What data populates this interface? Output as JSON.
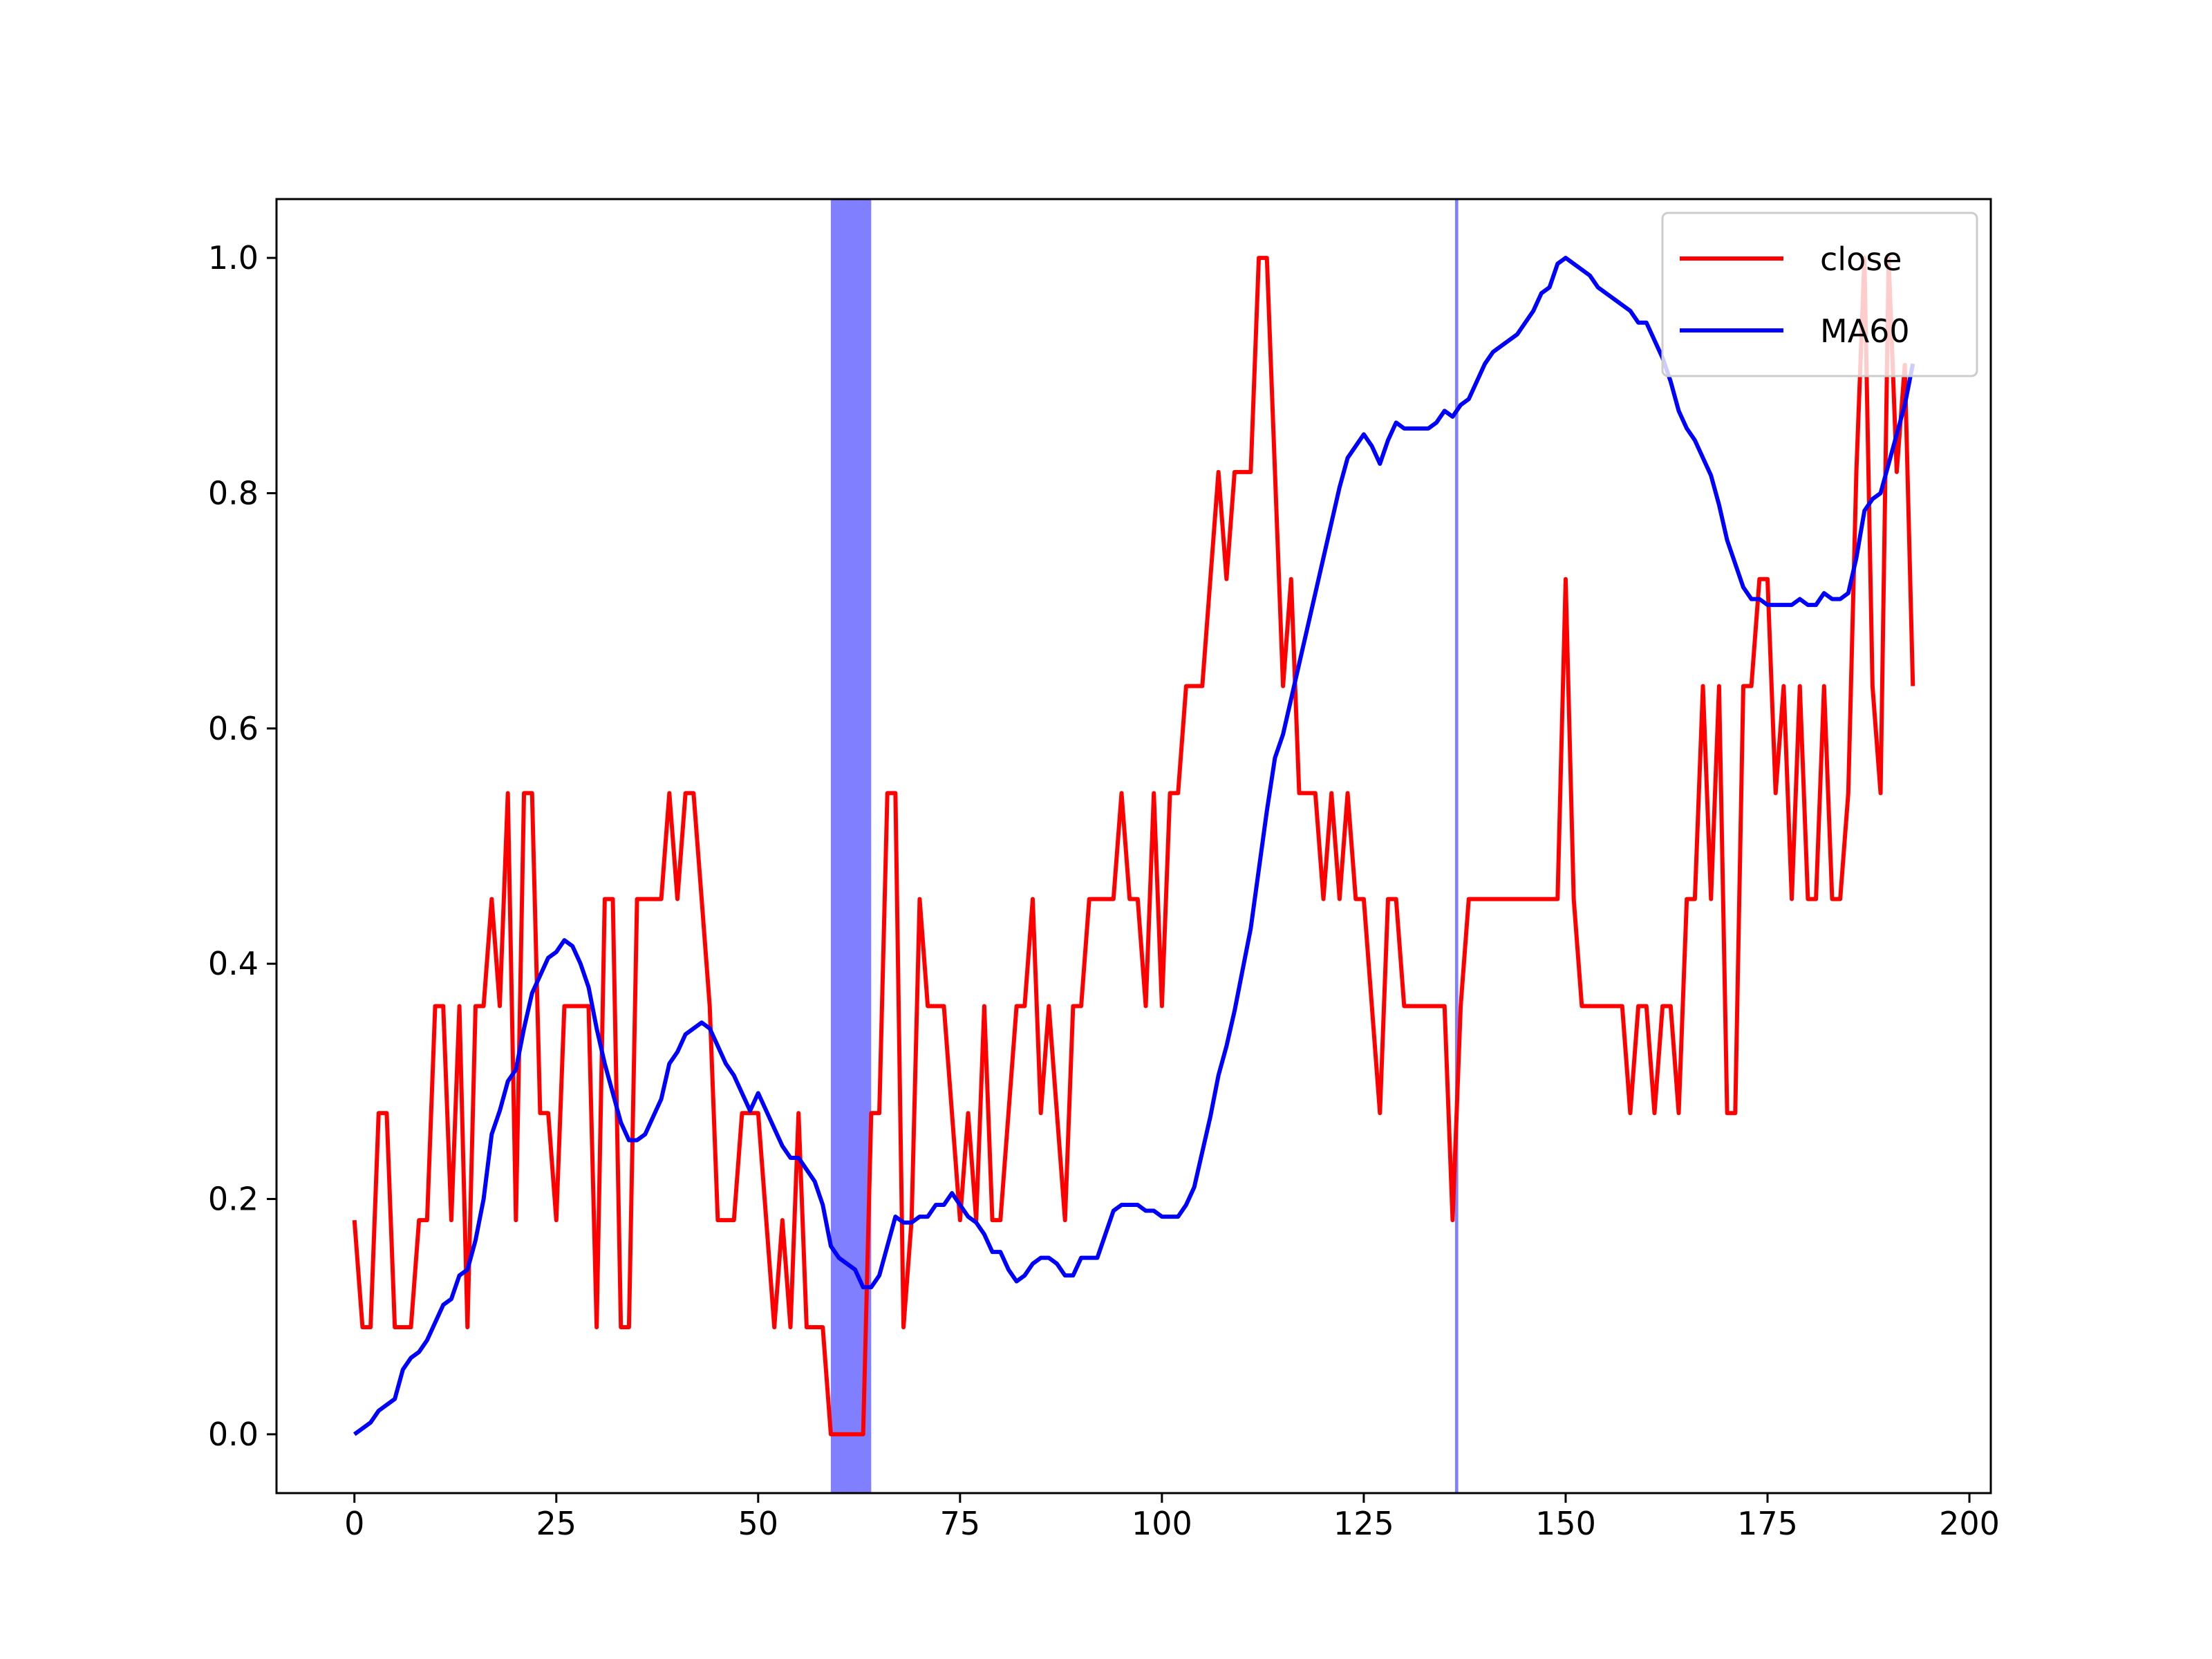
{
  "chart_data": {
    "type": "line",
    "x": [
      0,
      1,
      2,
      3,
      4,
      5,
      6,
      7,
      8,
      9,
      10,
      11,
      12,
      13,
      14,
      15,
      16,
      17,
      18,
      19,
      20,
      21,
      22,
      23,
      24,
      25,
      26,
      27,
      28,
      29,
      30,
      31,
      32,
      33,
      34,
      35,
      36,
      37,
      38,
      39,
      40,
      41,
      42,
      43,
      44,
      45,
      46,
      47,
      48,
      49,
      50,
      51,
      52,
      53,
      54,
      55,
      56,
      57,
      58,
      59,
      60,
      61,
      62,
      63,
      64,
      65,
      66,
      67,
      68,
      69,
      70,
      71,
      72,
      73,
      74,
      75,
      76,
      77,
      78,
      79,
      80,
      81,
      82,
      83,
      84,
      85,
      86,
      87,
      88,
      89,
      90,
      91,
      92,
      93,
      94,
      95,
      96,
      97,
      98,
      99,
      100,
      101,
      102,
      103,
      104,
      105,
      106,
      107,
      108,
      109,
      110,
      111,
      112,
      113,
      114,
      115,
      116,
      117,
      118,
      119,
      120,
      121,
      122,
      123,
      124,
      125,
      126,
      127,
      128,
      129,
      130,
      131,
      132,
      133,
      134,
      135,
      136,
      137,
      138,
      139,
      140,
      141,
      142,
      143,
      144,
      145,
      146,
      147,
      148,
      149,
      150,
      151,
      152,
      153,
      154,
      155,
      156,
      157,
      158,
      159,
      160,
      161,
      162,
      163,
      164,
      165,
      166,
      167,
      168,
      169,
      170,
      171,
      172,
      173,
      174,
      175,
      176,
      177,
      178,
      179,
      180,
      181,
      182,
      183,
      184,
      185,
      186,
      187,
      188,
      189,
      190,
      191,
      192,
      193
    ],
    "series": [
      {
        "name": "close",
        "color": "#ff0000",
        "values": [
          0.182,
          0.091,
          0.091,
          0.273,
          0.273,
          0.091,
          0.091,
          0.091,
          0.182,
          0.182,
          0.364,
          0.364,
          0.182,
          0.364,
          0.091,
          0.364,
          0.364,
          0.455,
          0.364,
          0.545,
          0.182,
          0.545,
          0.545,
          0.273,
          0.273,
          0.182,
          0.364,
          0.364,
          0.364,
          0.364,
          0.091,
          0.455,
          0.455,
          0.091,
          0.091,
          0.455,
          0.455,
          0.455,
          0.455,
          0.545,
          0.455,
          0.545,
          0.545,
          0.455,
          0.364,
          0.182,
          0.182,
          0.182,
          0.273,
          0.273,
          0.273,
          0.182,
          0.091,
          0.182,
          0.091,
          0.273,
          0.091,
          0.091,
          0.091,
          0,
          0,
          0,
          0,
          0,
          0.273,
          0.273,
          0.545,
          0.545,
          0.091,
          0.182,
          0.455,
          0.364,
          0.364,
          0.364,
          0.273,
          0.182,
          0.273,
          0.182,
          0.364,
          0.182,
          0.182,
          0.273,
          0.364,
          0.364,
          0.455,
          0.273,
          0.364,
          0.273,
          0.182,
          0.364,
          0.364,
          0.455,
          0.455,
          0.455,
          0.455,
          0.545,
          0.455,
          0.455,
          0.364,
          0.545,
          0.364,
          0.545,
          0.545,
          0.636,
          0.636,
          0.636,
          0.727,
          0.818,
          0.727,
          0.818,
          0.818,
          0.818,
          1.0,
          1.0,
          0.818,
          0.636,
          0.727,
          0.545,
          0.545,
          0.545,
          0.455,
          0.545,
          0.455,
          0.545,
          0.455,
          0.455,
          0.364,
          0.273,
          0.455,
          0.455,
          0.364,
          0.364,
          0.364,
          0.364,
          0.364,
          0.364,
          0.182,
          0.364,
          0.455,
          0.455,
          0.455,
          0.455,
          0.455,
          0.455,
          0.455,
          0.455,
          0.455,
          0.455,
          0.455,
          0.455,
          0.727,
          0.455,
          0.364,
          0.364,
          0.364,
          0.364,
          0.364,
          0.364,
          0.273,
          0.364,
          0.364,
          0.273,
          0.364,
          0.364,
          0.273,
          0.455,
          0.455,
          0.636,
          0.455,
          0.636,
          0.273,
          0.273,
          0.636,
          0.636,
          0.727,
          0.727,
          0.545,
          0.636,
          0.455,
          0.636,
          0.455,
          0.455,
          0.636,
          0.455,
          0.455,
          0.545,
          0.818,
          1.0,
          0.636,
          0.545,
          1.0,
          0.818,
          0.909,
          0.636
        ]
      },
      {
        "name": "MA60",
        "color": "#0000ff",
        "values": [
          0,
          0.005,
          0.01,
          0.02,
          0.025,
          0.03,
          0.055,
          0.065,
          0.07,
          0.08,
          0.095,
          0.11,
          0.115,
          0.135,
          0.14,
          0.165,
          0.2,
          0.255,
          0.275,
          0.3,
          0.31,
          0.345,
          0.375,
          0.39,
          0.405,
          0.41,
          0.42,
          0.415,
          0.4,
          0.38,
          0.345,
          0.315,
          0.29,
          0.265,
          0.25,
          0.25,
          0.255,
          0.27,
          0.285,
          0.315,
          0.325,
          0.34,
          0.345,
          0.35,
          0.345,
          0.33,
          0.315,
          0.305,
          0.29,
          0.275,
          0.29,
          0.275,
          0.26,
          0.245,
          0.235,
          0.235,
          0.225,
          0.215,
          0.195,
          0.16,
          0.15,
          0.145,
          0.14,
          0.125,
          0.125,
          0.135,
          0.16,
          0.185,
          0.18,
          0.18,
          0.185,
          0.185,
          0.195,
          0.195,
          0.205,
          0.195,
          0.185,
          0.18,
          0.17,
          0.155,
          0.155,
          0.14,
          0.13,
          0.135,
          0.145,
          0.15,
          0.15,
          0.145,
          0.135,
          0.135,
          0.15,
          0.15,
          0.15,
          0.17,
          0.19,
          0.195,
          0.195,
          0.195,
          0.19,
          0.19,
          0.185,
          0.185,
          0.185,
          0.195,
          0.21,
          0.24,
          0.27,
          0.305,
          0.33,
          0.36,
          0.395,
          0.43,
          0.48,
          0.53,
          0.575,
          0.595,
          0.625,
          0.655,
          0.685,
          0.715,
          0.745,
          0.775,
          0.805,
          0.83,
          0.84,
          0.85,
          0.84,
          0.825,
          0.845,
          0.86,
          0.855,
          0.855,
          0.855,
          0.855,
          0.86,
          0.87,
          0.865,
          0.875,
          0.88,
          0.895,
          0.91,
          0.92,
          0.925,
          0.93,
          0.935,
          0.945,
          0.955,
          0.97,
          0.975,
          0.995,
          1.0,
          0.995,
          0.99,
          0.985,
          0.975,
          0.97,
          0.965,
          0.96,
          0.955,
          0.945,
          0.945,
          0.93,
          0.915,
          0.895,
          0.87,
          0.855,
          0.845,
          0.83,
          0.815,
          0.79,
          0.76,
          0.74,
          0.72,
          0.71,
          0.71,
          0.705,
          0.705,
          0.705,
          0.705,
          0.71,
          0.705,
          0.705,
          0.715,
          0.71,
          0.71,
          0.715,
          0.745,
          0.785,
          0.795,
          0.8,
          0.825,
          0.85,
          0.875,
          0.91
        ]
      }
    ],
    "spans": [
      {
        "start": 59,
        "end": 64
      },
      {
        "start": 136.3,
        "end": 136.7
      }
    ],
    "span_color": "#0000ff",
    "xlim": [
      -9.65,
      202.65
    ],
    "xticks": [
      0,
      25,
      50,
      75,
      100,
      125,
      150,
      175,
      200
    ],
    "ylim": [
      -0.05,
      1.05
    ],
    "yticks": [
      {
        "value": 0,
        "label": "0.0"
      },
      {
        "value": 0.2,
        "label": "0.2"
      },
      {
        "value": 0.4,
        "label": "0.4"
      },
      {
        "value": 0.6,
        "label": "0.6"
      },
      {
        "value": 0.8,
        "label": "0.8"
      },
      {
        "value": 1,
        "label": "1.0"
      }
    ],
    "legend": "upper right"
  }
}
